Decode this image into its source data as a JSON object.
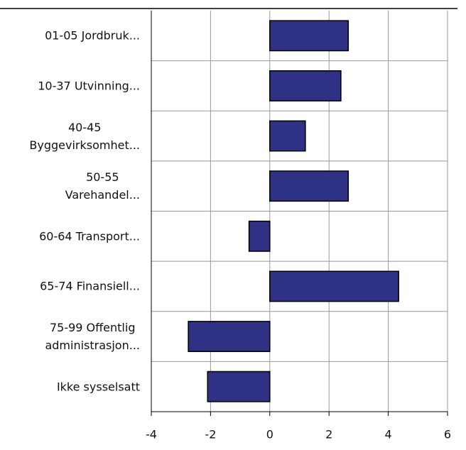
{
  "chart_data": {
    "type": "barh",
    "categories": [
      "01-05 Jordbruk...",
      "10-37 Utvinning...",
      "40-45\nByggevirksomhet...",
      "50-55\nVarehandel...",
      "60-64 Transport...",
      "65-74 Finansiell...",
      "75-99 Offentlig\nadministrasjon...",
      "Ikke sysselsatt"
    ],
    "values": [
      2.65,
      2.4,
      1.2,
      2.65,
      -0.7,
      4.35,
      -2.75,
      -2.1
    ],
    "color": "#2e3184",
    "xlim": [
      -4,
      6
    ],
    "xticks": [
      -4,
      -2,
      0,
      2,
      4,
      6
    ],
    "grid": true
  }
}
